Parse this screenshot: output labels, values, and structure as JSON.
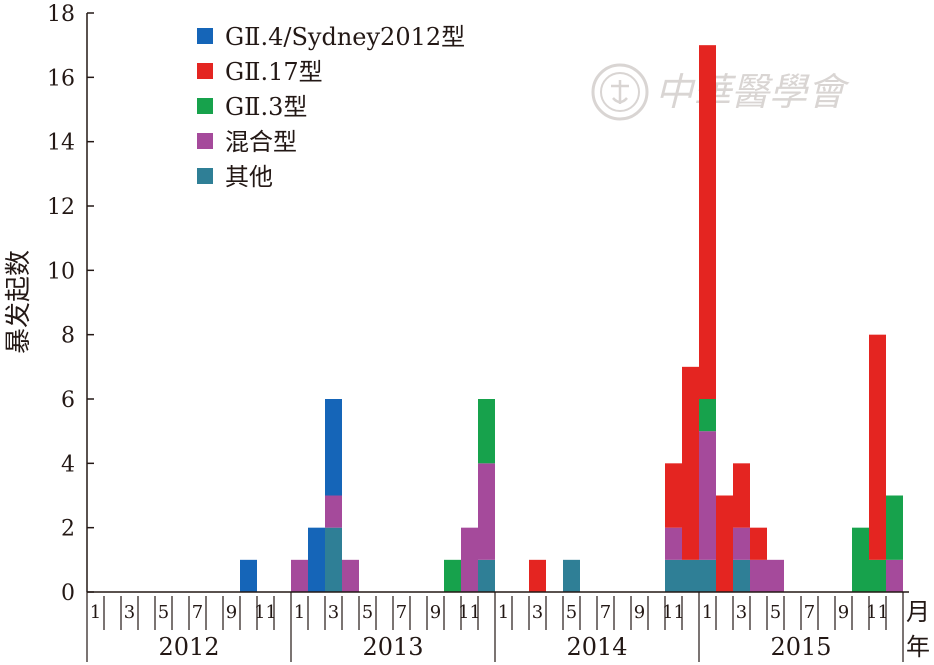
{
  "chart_data": {
    "type": "bar",
    "stacked": true,
    "title": "",
    "xlabel": "",
    "ylabel": "暴发起数",
    "ylim": [
      0,
      18
    ],
    "yticks": [
      0,
      2,
      4,
      6,
      8,
      10,
      12,
      14,
      16,
      18
    ],
    "grid": false,
    "legend_position": "top-left",
    "month_unit": "月",
    "year_unit": "年",
    "years": [
      "2012",
      "2013",
      "2014",
      "2015"
    ],
    "month_tick_labels": [
      "1",
      "3",
      "5",
      "7",
      "9",
      "11"
    ],
    "series": [
      {
        "name": "GⅡ.4/Sydney2012型",
        "color": "#1565b8",
        "values": [
          0,
          0,
          0,
          0,
          0,
          0,
          0,
          0,
          0,
          1,
          0,
          0,
          0,
          2,
          3,
          0,
          0,
          0,
          0,
          0,
          0,
          0,
          0,
          0,
          0,
          0,
          0,
          0,
          0,
          0,
          0,
          0,
          0,
          0,
          0,
          0,
          0,
          0,
          0,
          0,
          0,
          0,
          0,
          0,
          0,
          0,
          0,
          0
        ]
      },
      {
        "name": "GⅡ.17型",
        "color": "#e42521",
        "values": [
          0,
          0,
          0,
          0,
          0,
          0,
          0,
          0,
          0,
          0,
          0,
          0,
          0,
          0,
          0,
          0,
          0,
          0,
          0,
          0,
          0,
          0,
          0,
          0,
          0,
          0,
          1,
          0,
          0,
          0,
          0,
          0,
          0,
          0,
          2,
          6,
          11,
          3,
          2,
          1,
          0,
          0,
          0,
          0,
          0,
          0,
          7,
          0
        ]
      },
      {
        "name": "GⅡ.3型",
        "color": "#17a24c",
        "values": [
          0,
          0,
          0,
          0,
          0,
          0,
          0,
          0,
          0,
          0,
          0,
          0,
          0,
          0,
          0,
          0,
          0,
          0,
          0,
          0,
          0,
          1,
          0,
          2,
          0,
          0,
          0,
          0,
          0,
          0,
          0,
          0,
          0,
          0,
          0,
          0,
          1,
          0,
          0,
          0,
          0,
          0,
          0,
          0,
          0,
          2,
          1,
          2
        ]
      },
      {
        "name": "混合型",
        "color": "#a54a9b",
        "values": [
          0,
          0,
          0,
          0,
          0,
          0,
          0,
          0,
          0,
          0,
          0,
          0,
          1,
          0,
          1,
          1,
          0,
          0,
          0,
          0,
          0,
          0,
          2,
          3,
          0,
          0,
          0,
          0,
          0,
          0,
          0,
          0,
          0,
          0,
          1,
          0,
          4,
          0,
          1,
          1,
          1,
          0,
          0,
          0,
          0,
          0,
          0,
          1
        ]
      },
      {
        "name": "其他",
        "color": "#2f7f96",
        "values": [
          0,
          0,
          0,
          0,
          0,
          0,
          0,
          0,
          0,
          0,
          0,
          0,
          0,
          0,
          2,
          0,
          0,
          0,
          0,
          0,
          0,
          0,
          0,
          1,
          0,
          0,
          0,
          0,
          1,
          0,
          0,
          0,
          0,
          0,
          1,
          1,
          1,
          0,
          1,
          0,
          0,
          0,
          0,
          0,
          0,
          0,
          0,
          0
        ]
      }
    ]
  },
  "watermark": {
    "text": "中華醫學會",
    "seal_icon": "seal-icon"
  }
}
